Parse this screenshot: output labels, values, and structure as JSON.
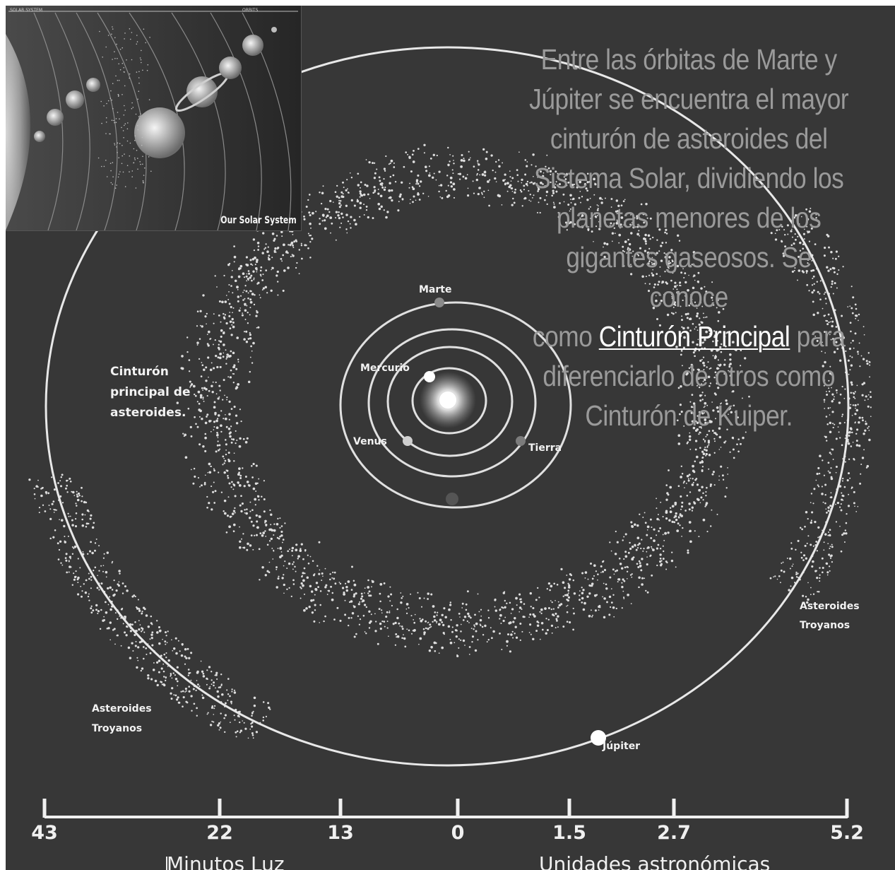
{
  "caption": {
    "line1": "Entre las órbitas de Marte y",
    "line2": "Júpiter se encuentra el mayor",
    "line3": "cinturón de asteroides del",
    "line4": "Sistema Solar, dividiendo los",
    "line5": "planetas menores de los",
    "line6": "gigantes gaseosos. Se conoce",
    "line7_before": "como ",
    "link": "Cinturón Principal",
    "line7_after": " para",
    "line8": "diferenciarlo de otros como",
    "line9": "Cinturón de Kuiper."
  },
  "inset": {
    "title": "Our Solar System",
    "header_left": "SOLAR SYSTEM",
    "header_right": "ORBITS"
  },
  "labels": {
    "marte": "Marte",
    "mercurio": "Mercurio",
    "venus": "Venus",
    "tierra": "Tierra",
    "jupiter": "Júpiter",
    "belt_line1": "Cinturón",
    "belt_line2": "principal de",
    "belt_line3": "asteroides.",
    "trojans_right_line1": "Asteroides",
    "trojans_right_line2": "Troyanos",
    "trojans_left_line1": "Asteroides",
    "trojans_left_line2": "Troyanos"
  },
  "scale": {
    "ticks": [
      "43",
      "22",
      "13",
      "0",
      "1.5",
      "2.7",
      "5.2"
    ],
    "left_unit": "Minutos Luz",
    "right_unit": "Unidades astronómicas"
  },
  "colors": {
    "background": "#373737",
    "caption_text": "#9a9a9a",
    "link": "#ffffff",
    "orbit": "#e6e6e6",
    "asteroid": "#dedede"
  }
}
